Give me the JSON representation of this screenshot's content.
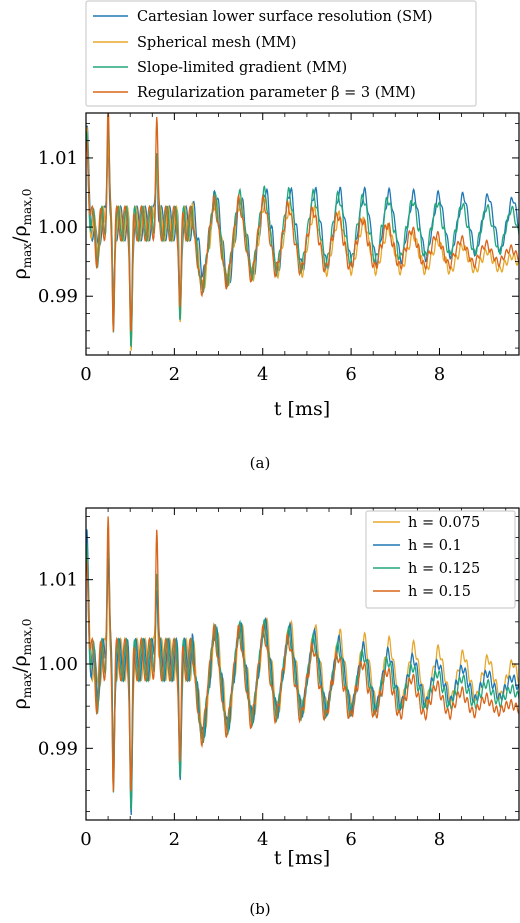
{
  "chart_data": [
    {
      "type": "line",
      "panel_label": "(a)",
      "xlabel": "t [ms]",
      "ylabel": "ρmax/ρmax,0",
      "ylabel_main": "ρ",
      "ylabel_sub_num": "max",
      "ylabel_sub_den": "max,0",
      "xlim": [
        0,
        9.8
      ],
      "ylim": [
        0.9815,
        1.0165
      ],
      "xticks": [
        0,
        2,
        4,
        6,
        8
      ],
      "xtick_labels": [
        "0",
        "2",
        "4",
        "6",
        "8"
      ],
      "yticks": [
        0.99,
        1.0,
        1.01
      ],
      "ytick_labels": [
        "0.99",
        "1.00",
        "1.01"
      ],
      "grid": false,
      "legend_position": "top",
      "series": [
        {
          "name": "Cartesian lower surface resolution (SM)",
          "color": "#1f77b4",
          "start": 1.013,
          "end_amp": 0.0045,
          "end_center": 1.0,
          "final": 1.0,
          "samples": [
            [
              0,
              1.0135
            ],
            [
              0.02,
              1.013
            ],
            [
              0.1,
              1.0085
            ],
            [
              0.2,
              0.9962
            ],
            [
              0.28,
              1.0012
            ],
            [
              0.36,
              0.9952
            ],
            [
              0.5,
              1.0142
            ],
            [
              0.55,
              0.9982
            ],
            [
              0.62,
              0.9868
            ],
            [
              0.75,
              1.0015
            ],
            [
              1.02,
              0.9838
            ],
            [
              1.1,
              1.0005
            ],
            [
              1.6,
              1.0115
            ],
            [
              2.13,
              0.9875
            ],
            [
              2.7,
              1.0065
            ],
            [
              3.22,
              0.9915
            ],
            [
              4.05,
              1.0035
            ],
            [
              6.0,
              1.004
            ],
            [
              8.0,
              1.0035
            ],
            [
              9.5,
              1.004
            ],
            [
              9.8,
              1.0
            ]
          ]
        },
        {
          "name": "Spherical mesh (MM)",
          "color": "#e6a82d",
          "start": 1.012,
          "end_amp": 0.001,
          "end_center": 0.9948,
          "final": 0.9945,
          "samples": [
            [
              0,
              1.0125
            ],
            [
              0.5,
              1.014
            ],
            [
              1.02,
              0.984
            ],
            [
              1.6,
              1.011
            ],
            [
              2.13,
              0.988
            ],
            [
              4.05,
              1.003
            ],
            [
              6.0,
              1.002
            ],
            [
              8.0,
              0.996
            ],
            [
              9.0,
              0.995
            ],
            [
              9.8,
              0.9945
            ]
          ]
        },
        {
          "name": "Slope-limited gradient (MM)",
          "color": "#22a67a",
          "start": 1.0125,
          "end_amp": 0.0035,
          "end_center": 0.9995,
          "final": 0.9998,
          "samples": [
            [
              0,
              1.014
            ],
            [
              0.5,
              1.0142
            ],
            [
              1.02,
              0.9838
            ],
            [
              1.6,
              1.0112
            ],
            [
              2.13,
              0.9877
            ],
            [
              4.05,
              1.0033
            ],
            [
              6.0,
              1.0035
            ],
            [
              8.0,
              1.0025
            ],
            [
              9.8,
              0.9998
            ]
          ]
        },
        {
          "name": "Regularization parameter β = 3 (MM)",
          "color": "#d9651a",
          "start": 1.0135,
          "end_amp": 0.001,
          "end_center": 0.9958,
          "final": 0.996,
          "samples": [
            [
              0,
              1.0145
            ],
            [
              0.5,
              1.014
            ],
            [
              1.02,
              0.9835
            ],
            [
              1.6,
              1.0145
            ],
            [
              2.13,
              0.987
            ],
            [
              4.05,
              1.0025
            ],
            [
              6.0,
              1.001
            ],
            [
              8.0,
              0.9975
            ],
            [
              9.8,
              0.996
            ]
          ]
        }
      ]
    },
    {
      "type": "line",
      "panel_label": "(b)",
      "xlabel": "t [ms]",
      "ylabel": "ρmax/ρmax,0",
      "ylabel_main": "ρ",
      "ylabel_sub_num": "max",
      "ylabel_sub_den": "max,0",
      "xlim": [
        0,
        9.8
      ],
      "ylim": [
        0.9815,
        1.0185
      ],
      "xticks": [
        0,
        2,
        4,
        6,
        8
      ],
      "xtick_labels": [
        "0",
        "2",
        "4",
        "6",
        "8"
      ],
      "yticks": [
        0.99,
        1.0,
        1.01
      ],
      "ytick_labels": [
        "0.99",
        "1.00",
        "1.01"
      ],
      "grid": false,
      "legend_position": "top-right",
      "series": [
        {
          "name": "h = 0.075",
          "color": "#e6a82d",
          "start": 1.012,
          "end_amp": 0.0022,
          "end_center": 0.9982,
          "final": 0.998,
          "samples": [
            [
              0,
              1.013
            ],
            [
              0.5,
              1.017
            ],
            [
              1.02,
              0.984
            ],
            [
              1.6,
              1.011
            ],
            [
              2.13,
              0.988
            ],
            [
              4.05,
              1.008
            ],
            [
              6.0,
              1.003
            ],
            [
              8.0,
              1.001
            ],
            [
              9.8,
              0.998
            ]
          ]
        },
        {
          "name": "h = 0.1",
          "color": "#1f77b4",
          "start": 1.0135,
          "end_amp": 0.0012,
          "end_center": 0.9972,
          "final": 0.9972,
          "samples": [
            [
              0,
              1.0135
            ],
            [
              0.5,
              1.0172
            ],
            [
              1.02,
              0.9835
            ],
            [
              1.6,
              1.0115
            ],
            [
              2.13,
              0.9875
            ],
            [
              4.05,
              1.007
            ],
            [
              6.0,
              1.002
            ],
            [
              8.0,
              0.999
            ],
            [
              9.8,
              0.9972
            ]
          ]
        },
        {
          "name": "h = 0.125",
          "color": "#22a67a",
          "start": 1.013,
          "end_amp": 0.0008,
          "end_center": 0.9962,
          "final": 0.9962,
          "samples": [
            [
              0,
              1.013
            ],
            [
              0.5,
              1.0168
            ],
            [
              1.02,
              0.9838
            ],
            [
              1.6,
              1.0118
            ],
            [
              2.13,
              0.9877
            ],
            [
              4.05,
              1.0065
            ],
            [
              6.0,
              1.001
            ],
            [
              8.0,
              0.9975
            ],
            [
              9.8,
              0.9962
            ]
          ]
        },
        {
          "name": "h = 0.15",
          "color": "#d9651a",
          "start": 1.0132,
          "end_amp": 0.0003,
          "end_center": 0.9948,
          "final": 0.9945,
          "samples": [
            [
              0,
              1.0132
            ],
            [
              0.5,
              1.0175
            ],
            [
              1.02,
              0.984
            ],
            [
              1.6,
              1.0108
            ],
            [
              2.13,
              0.988
            ],
            [
              4.05,
              1.005
            ],
            [
              6.0,
              0.9995
            ],
            [
              8.0,
              0.9955
            ],
            [
              9.8,
              0.9945
            ]
          ]
        }
      ]
    }
  ]
}
